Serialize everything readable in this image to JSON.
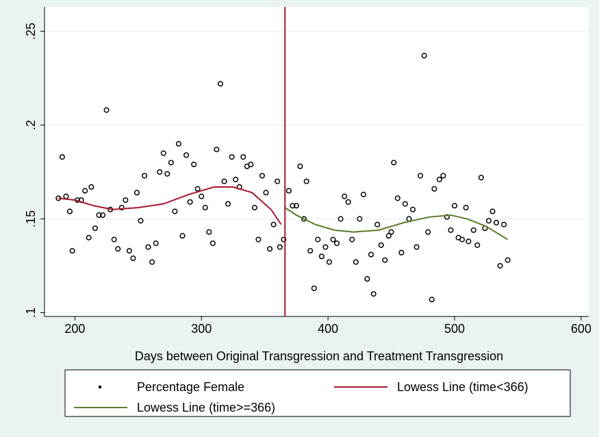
{
  "chart_data": {
    "type": "scatter",
    "xlabel": "Days between Original Transgression and Treatment Transgression",
    "xlim": [
      176,
      606
    ],
    "ylim": [
      0.098,
      0.263
    ],
    "xticks": [
      200,
      300,
      400,
      500,
      600
    ],
    "yticks": [
      {
        "value": 0.1,
        "label": ".1"
      },
      {
        "value": 0.15,
        "label": ".15"
      },
      {
        "value": 0.2,
        "label": ".2"
      },
      {
        "value": 0.25,
        "label": ".25"
      }
    ],
    "grid": true,
    "legend": "bottom",
    "xline": {
      "value": 366,
      "color": "#a8162e"
    },
    "series": [
      {
        "name": "Percentage Female",
        "mode": "markers",
        "color": "#000000",
        "x": [
          187,
          190,
          193,
          196,
          198,
          202,
          205,
          208,
          211,
          213,
          216,
          219,
          222,
          225,
          228,
          231,
          234,
          237,
          240,
          243,
          246,
          249,
          252,
          255,
          258,
          261,
          264,
          267,
          270,
          273,
          276,
          279,
          282,
          285,
          288,
          291,
          294,
          297,
          300,
          303,
          306,
          309,
          312,
          315,
          318,
          321,
          324,
          327,
          330,
          333,
          336,
          339,
          342,
          345,
          348,
          351,
          354,
          357,
          360,
          362,
          365,
          369,
          372,
          375,
          378,
          381,
          383,
          386,
          389,
          392,
          395,
          398,
          401,
          404,
          407,
          410,
          413,
          416,
          419,
          422,
          425,
          428,
          431,
          434,
          436,
          439,
          442,
          445,
          448,
          450,
          452,
          455,
          458,
          461,
          464,
          467,
          470,
          473,
          476,
          479,
          482,
          484,
          488,
          491,
          494,
          497,
          500,
          503,
          506,
          509,
          511,
          515,
          518,
          521,
          524,
          527,
          530,
          533,
          536,
          539,
          542
        ],
        "values": [
          0.161,
          0.183,
          0.162,
          0.154,
          0.133,
          0.16,
          0.16,
          0.165,
          0.14,
          0.167,
          0.145,
          0.152,
          0.152,
          0.208,
          0.155,
          0.139,
          0.134,
          0.156,
          0.16,
          0.133,
          0.129,
          0.164,
          0.149,
          0.173,
          0.135,
          0.127,
          0.137,
          0.175,
          0.185,
          0.174,
          0.18,
          0.154,
          0.19,
          0.141,
          0.184,
          0.159,
          0.179,
          0.166,
          0.162,
          0.156,
          0.143,
          0.137,
          0.187,
          0.222,
          0.17,
          0.158,
          0.183,
          0.171,
          0.167,
          0.183,
          0.178,
          0.179,
          0.156,
          0.139,
          0.173,
          0.164,
          0.134,
          0.147,
          0.17,
          0.135,
          0.139,
          0.165,
          0.157,
          0.157,
          0.178,
          0.15,
          0.17,
          0.133,
          0.113,
          0.139,
          0.13,
          0.135,
          0.127,
          0.139,
          0.137,
          0.15,
          0.162,
          0.159,
          0.139,
          0.127,
          0.15,
          0.163,
          0.118,
          0.131,
          0.11,
          0.147,
          0.136,
          0.128,
          0.141,
          0.143,
          0.18,
          0.161,
          0.132,
          0.158,
          0.15,
          0.155,
          0.135,
          0.173,
          0.237,
          0.143,
          0.107,
          0.166,
          0.171,
          0.173,
          0.151,
          0.144,
          0.157,
          0.14,
          0.139,
          0.156,
          0.138,
          0.144,
          0.136,
          0.172,
          0.145,
          0.149,
          0.154,
          0.148,
          0.125,
          0.147,
          0.128
        ]
      },
      {
        "name": "Lowess Line (time<366)",
        "mode": "lines",
        "color": "#a8162e",
        "x": [
          187,
          200,
          215,
          230,
          250,
          270,
          290,
          310,
          325,
          340,
          355,
          363
        ],
        "values": [
          0.161,
          0.16,
          0.157,
          0.155,
          0.156,
          0.158,
          0.163,
          0.167,
          0.167,
          0.164,
          0.155,
          0.147
        ]
      },
      {
        "name": "Lowess Line (time>=366)",
        "mode": "lines",
        "color": "#5a7d2a",
        "x": [
          366,
          375,
          390,
          405,
          420,
          440,
          460,
          480,
          497,
          510,
          525,
          542
        ],
        "values": [
          0.156,
          0.152,
          0.147,
          0.144,
          0.143,
          0.144,
          0.148,
          0.151,
          0.152,
          0.15,
          0.146,
          0.139
        ]
      }
    ]
  }
}
